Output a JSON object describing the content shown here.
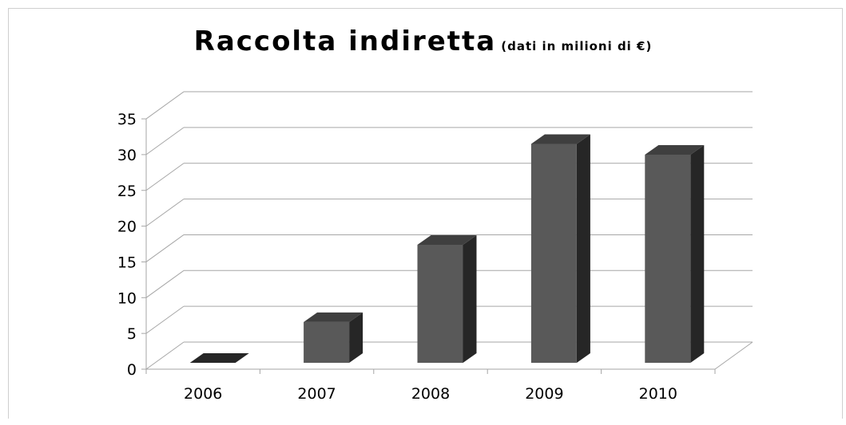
{
  "chart_data": {
    "type": "bar",
    "title": "Raccolta indiretta",
    "subtitle": "(dati in milioni di €)",
    "categories": [
      "2006",
      "2007",
      "2008",
      "2009",
      "2010"
    ],
    "values": [
      0,
      5.7,
      16.5,
      30.6,
      29.1
    ],
    "ylim": [
      0,
      35
    ],
    "yticks": [
      0,
      5,
      10,
      15,
      20,
      25,
      30,
      35
    ],
    "grid": true,
    "legend": "none",
    "style": "3d-column",
    "colors": {
      "front": "#595959",
      "top": "#3f3f3f",
      "side": "#262626",
      "grid": "#a6a6a6"
    }
  }
}
